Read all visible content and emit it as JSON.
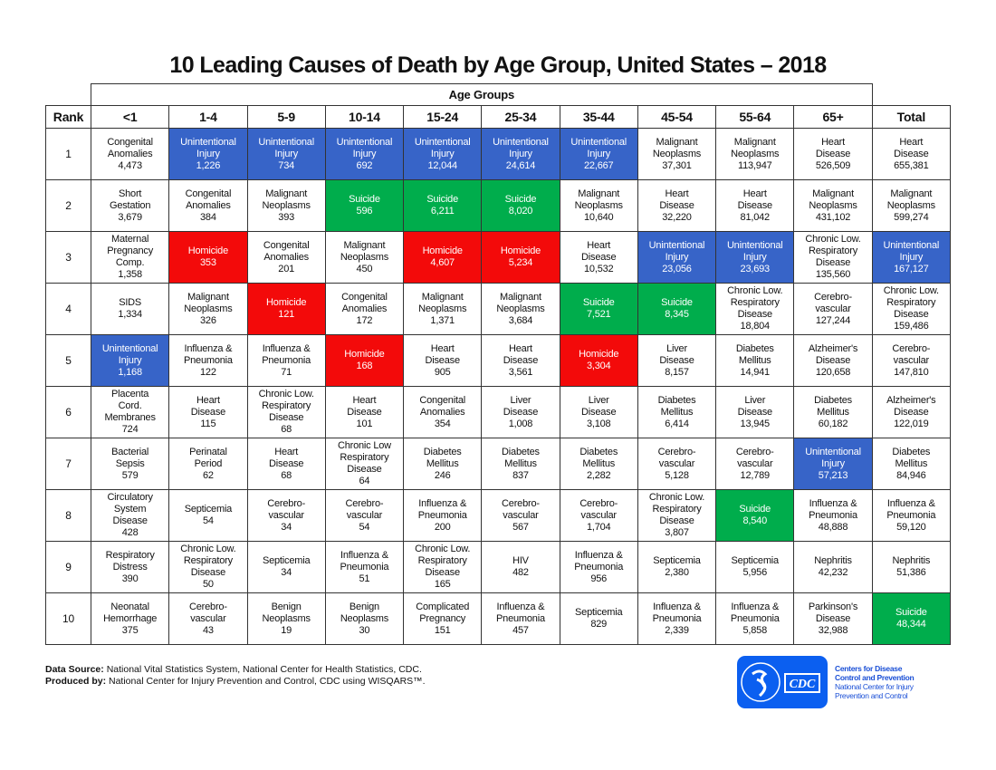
{
  "title": "10 Leading Causes of Death by Age Group, United States – 2018",
  "age_groups_label": "Age Groups",
  "columns": [
    "Rank",
    "<1",
    "1-4",
    "5-9",
    "10-14",
    "15-24",
    "25-34",
    "35-44",
    "45-54",
    "55-64",
    "65+",
    "Total"
  ],
  "colors": {
    "unintentional_injury": "#3764c8",
    "homicide": "#f30a0a",
    "suicide": "#00ad4c"
  },
  "rows": [
    {
      "rank": "1",
      "cells": [
        {
          "lines": [
            "Congenital",
            "Anomalies"
          ],
          "value": "4,473",
          "type": ""
        },
        {
          "lines": [
            "Unintentional",
            "Injury"
          ],
          "value": "1,226",
          "type": "blue"
        },
        {
          "lines": [
            "Unintentional",
            "Injury"
          ],
          "value": "734",
          "type": "blue"
        },
        {
          "lines": [
            "Unintentional",
            "Injury"
          ],
          "value": "692",
          "type": "blue"
        },
        {
          "lines": [
            "Unintentional",
            "Injury"
          ],
          "value": "12,044",
          "type": "blue"
        },
        {
          "lines": [
            "Unintentional",
            "Injury"
          ],
          "value": "24,614",
          "type": "blue"
        },
        {
          "lines": [
            "Unintentional",
            "Injury"
          ],
          "value": "22,667",
          "type": "blue"
        },
        {
          "lines": [
            "Malignant",
            "Neoplasms"
          ],
          "value": "37,301",
          "type": ""
        },
        {
          "lines": [
            "Malignant",
            "Neoplasms"
          ],
          "value": "113,947",
          "type": ""
        },
        {
          "lines": [
            "Heart",
            "Disease"
          ],
          "value": "526,509",
          "type": ""
        },
        {
          "lines": [
            "Heart",
            "Disease"
          ],
          "value": "655,381",
          "type": ""
        }
      ]
    },
    {
      "rank": "2",
      "cells": [
        {
          "lines": [
            "Short",
            "Gestation"
          ],
          "value": "3,679",
          "type": ""
        },
        {
          "lines": [
            "Congenital",
            "Anomalies"
          ],
          "value": "384",
          "type": ""
        },
        {
          "lines": [
            "Malignant",
            "Neoplasms"
          ],
          "value": "393",
          "type": ""
        },
        {
          "lines": [
            "Suicide"
          ],
          "value": "596",
          "type": "green"
        },
        {
          "lines": [
            "Suicide"
          ],
          "value": "6,211",
          "type": "green"
        },
        {
          "lines": [
            "Suicide"
          ],
          "value": "8,020",
          "type": "green"
        },
        {
          "lines": [
            "Malignant",
            "Neoplasms"
          ],
          "value": "10,640",
          "type": ""
        },
        {
          "lines": [
            "Heart",
            "Disease"
          ],
          "value": "32,220",
          "type": ""
        },
        {
          "lines": [
            "Heart",
            "Disease"
          ],
          "value": "81,042",
          "type": ""
        },
        {
          "lines": [
            "Malignant",
            "Neoplasms"
          ],
          "value": "431,102",
          "type": ""
        },
        {
          "lines": [
            "Malignant",
            "Neoplasms"
          ],
          "value": "599,274",
          "type": ""
        }
      ]
    },
    {
      "rank": "3",
      "cells": [
        {
          "lines": [
            "Maternal",
            "Pregnancy",
            "Comp."
          ],
          "value": "1,358",
          "type": ""
        },
        {
          "lines": [
            "Homicide"
          ],
          "value": "353",
          "type": "red"
        },
        {
          "lines": [
            "Congenital",
            "Anomalies"
          ],
          "value": "201",
          "type": ""
        },
        {
          "lines": [
            "Malignant",
            "Neoplasms"
          ],
          "value": "450",
          "type": ""
        },
        {
          "lines": [
            "Homicide"
          ],
          "value": "4,607",
          "type": "red"
        },
        {
          "lines": [
            "Homicide"
          ],
          "value": "5,234",
          "type": "red"
        },
        {
          "lines": [
            "Heart",
            "Disease"
          ],
          "value": "10,532",
          "type": ""
        },
        {
          "lines": [
            "Unintentional",
            "Injury"
          ],
          "value": "23,056",
          "type": "blue"
        },
        {
          "lines": [
            "Unintentional",
            "Injury"
          ],
          "value": "23,693",
          "type": "blue"
        },
        {
          "lines": [
            "Chronic Low.",
            "Respiratory",
            "Disease"
          ],
          "value": "135,560",
          "type": ""
        },
        {
          "lines": [
            "Unintentional",
            "Injury"
          ],
          "value": "167,127",
          "type": "blue"
        }
      ]
    },
    {
      "rank": "4",
      "cells": [
        {
          "lines": [
            "SIDS"
          ],
          "value": "1,334",
          "type": ""
        },
        {
          "lines": [
            "Malignant",
            "Neoplasms"
          ],
          "value": "326",
          "type": ""
        },
        {
          "lines": [
            "Homicide"
          ],
          "value": "121",
          "type": "red"
        },
        {
          "lines": [
            "Congenital",
            "Anomalies"
          ],
          "value": "172",
          "type": ""
        },
        {
          "lines": [
            "Malignant",
            "Neoplasms"
          ],
          "value": "1,371",
          "type": ""
        },
        {
          "lines": [
            "Malignant",
            "Neoplasms"
          ],
          "value": "3,684",
          "type": ""
        },
        {
          "lines": [
            "Suicide"
          ],
          "value": "7,521",
          "type": "green"
        },
        {
          "lines": [
            "Suicide"
          ],
          "value": "8,345",
          "type": "green"
        },
        {
          "lines": [
            "Chronic Low.",
            "Respiratory",
            "Disease"
          ],
          "value": "18,804",
          "type": ""
        },
        {
          "lines": [
            "Cerebro-",
            "vascular"
          ],
          "value": "127,244",
          "type": ""
        },
        {
          "lines": [
            "Chronic Low.",
            "Respiratory",
            "Disease"
          ],
          "value": "159,486",
          "type": ""
        }
      ]
    },
    {
      "rank": "5",
      "cells": [
        {
          "lines": [
            "Unintentional",
            "Injury"
          ],
          "value": "1,168",
          "type": "blue"
        },
        {
          "lines": [
            "Influenza &",
            "Pneumonia"
          ],
          "value": "122",
          "type": ""
        },
        {
          "lines": [
            "Influenza &",
            "Pneumonia"
          ],
          "value": "71",
          "type": ""
        },
        {
          "lines": [
            "Homicide"
          ],
          "value": "168",
          "type": "red"
        },
        {
          "lines": [
            "Heart",
            "Disease"
          ],
          "value": "905",
          "type": ""
        },
        {
          "lines": [
            "Heart",
            "Disease"
          ],
          "value": "3,561",
          "type": ""
        },
        {
          "lines": [
            "Homicide"
          ],
          "value": "3,304",
          "type": "red"
        },
        {
          "lines": [
            "Liver",
            "Disease"
          ],
          "value": "8,157",
          "type": ""
        },
        {
          "lines": [
            "Diabetes",
            "Mellitus"
          ],
          "value": "14,941",
          "type": ""
        },
        {
          "lines": [
            "Alzheimer's",
            "Disease"
          ],
          "value": "120,658",
          "type": ""
        },
        {
          "lines": [
            "Cerebro-",
            "vascular"
          ],
          "value": "147,810",
          "type": ""
        }
      ]
    },
    {
      "rank": "6",
      "cells": [
        {
          "lines": [
            "Placenta",
            "Cord.",
            "Membranes"
          ],
          "value": "724",
          "type": ""
        },
        {
          "lines": [
            "Heart",
            "Disease"
          ],
          "value": "115",
          "type": ""
        },
        {
          "lines": [
            "Chronic Low.",
            "Respiratory",
            "Disease"
          ],
          "value": "68",
          "type": ""
        },
        {
          "lines": [
            "Heart",
            "Disease"
          ],
          "value": "101",
          "type": ""
        },
        {
          "lines": [
            "Congenital",
            "Anomalies"
          ],
          "value": "354",
          "type": ""
        },
        {
          "lines": [
            "Liver",
            "Disease"
          ],
          "value": "1,008",
          "type": ""
        },
        {
          "lines": [
            "Liver",
            "Disease"
          ],
          "value": "3,108",
          "type": ""
        },
        {
          "lines": [
            "Diabetes",
            "Mellitus"
          ],
          "value": "6,414",
          "type": ""
        },
        {
          "lines": [
            "Liver",
            "Disease"
          ],
          "value": "13,945",
          "type": ""
        },
        {
          "lines": [
            "Diabetes",
            "Mellitus"
          ],
          "value": "60,182",
          "type": ""
        },
        {
          "lines": [
            "Alzheimer's",
            "Disease"
          ],
          "value": "122,019",
          "type": ""
        }
      ]
    },
    {
      "rank": "7",
      "cells": [
        {
          "lines": [
            "Bacterial",
            "Sepsis"
          ],
          "value": "579",
          "type": ""
        },
        {
          "lines": [
            "Perinatal",
            "Period"
          ],
          "value": "62",
          "type": ""
        },
        {
          "lines": [
            "Heart",
            "Disease"
          ],
          "value": "68",
          "type": ""
        },
        {
          "lines": [
            "Chronic Low",
            "Respiratory",
            "Disease"
          ],
          "value": "64",
          "type": ""
        },
        {
          "lines": [
            "Diabetes",
            "Mellitus"
          ],
          "value": "246",
          "type": ""
        },
        {
          "lines": [
            "Diabetes",
            "Mellitus"
          ],
          "value": "837",
          "type": ""
        },
        {
          "lines": [
            "Diabetes",
            "Mellitus"
          ],
          "value": "2,282",
          "type": ""
        },
        {
          "lines": [
            "Cerebro-",
            "vascular"
          ],
          "value": "5,128",
          "type": ""
        },
        {
          "lines": [
            "Cerebro-",
            "vascular"
          ],
          "value": "12,789",
          "type": ""
        },
        {
          "lines": [
            "Unintentional",
            "Injury"
          ],
          "value": "57,213",
          "type": "blue"
        },
        {
          "lines": [
            "Diabetes",
            "Mellitus"
          ],
          "value": "84,946",
          "type": ""
        }
      ]
    },
    {
      "rank": "8",
      "cells": [
        {
          "lines": [
            "Circulatory",
            "System",
            "Disease"
          ],
          "value": "428",
          "type": ""
        },
        {
          "lines": [
            "Septicemia"
          ],
          "value": "54",
          "type": ""
        },
        {
          "lines": [
            "Cerebro-",
            "vascular"
          ],
          "value": "34",
          "type": ""
        },
        {
          "lines": [
            "Cerebro-",
            "vascular"
          ],
          "value": "54",
          "type": ""
        },
        {
          "lines": [
            "Influenza &",
            "Pneumonia"
          ],
          "value": "200",
          "type": ""
        },
        {
          "lines": [
            "Cerebro-",
            "vascular"
          ],
          "value": "567",
          "type": ""
        },
        {
          "lines": [
            "Cerebro-",
            "vascular"
          ],
          "value": "1,704",
          "type": ""
        },
        {
          "lines": [
            "Chronic Low.",
            "Respiratory",
            "Disease"
          ],
          "value": "3,807",
          "type": ""
        },
        {
          "lines": [
            "Suicide"
          ],
          "value": "8,540",
          "type": "green"
        },
        {
          "lines": [
            "Influenza &",
            "Pneumonia"
          ],
          "value": "48,888",
          "type": ""
        },
        {
          "lines": [
            "Influenza &",
            "Pneumonia"
          ],
          "value": "59,120",
          "type": ""
        }
      ]
    },
    {
      "rank": "9",
      "cells": [
        {
          "lines": [
            "Respiratory",
            "Distress"
          ],
          "value": "390",
          "type": ""
        },
        {
          "lines": [
            "Chronic Low.",
            "Respiratory",
            "Disease"
          ],
          "value": "50",
          "type": ""
        },
        {
          "lines": [
            "Septicemia"
          ],
          "value": "34",
          "type": ""
        },
        {
          "lines": [
            "Influenza &",
            "Pneumonia"
          ],
          "value": "51",
          "type": ""
        },
        {
          "lines": [
            "Chronic Low.",
            "Respiratory",
            "Disease"
          ],
          "value": "165",
          "type": ""
        },
        {
          "lines": [
            "HIV"
          ],
          "value": "482",
          "type": ""
        },
        {
          "lines": [
            "Influenza &",
            "Pneumonia"
          ],
          "value": "956",
          "type": ""
        },
        {
          "lines": [
            "Septicemia"
          ],
          "value": "2,380",
          "type": ""
        },
        {
          "lines": [
            "Septicemia"
          ],
          "value": "5,956",
          "type": ""
        },
        {
          "lines": [
            "Nephritis"
          ],
          "value": "42,232",
          "type": ""
        },
        {
          "lines": [
            "Nephritis"
          ],
          "value": "51,386",
          "type": ""
        }
      ]
    },
    {
      "rank": "10",
      "cells": [
        {
          "lines": [
            "Neonatal",
            "Hemorrhage"
          ],
          "value": "375",
          "type": ""
        },
        {
          "lines": [
            "Cerebro-",
            "vascular"
          ],
          "value": "43",
          "type": ""
        },
        {
          "lines": [
            "Benign",
            "Neoplasms"
          ],
          "value": "19",
          "type": ""
        },
        {
          "lines": [
            "Benign",
            "Neoplasms"
          ],
          "value": "30",
          "type": ""
        },
        {
          "lines": [
            "Complicated",
            "Pregnancy"
          ],
          "value": "151",
          "type": ""
        },
        {
          "lines": [
            "Influenza &",
            "Pneumonia"
          ],
          "value": "457",
          "type": ""
        },
        {
          "lines": [
            "Septicemia"
          ],
          "value": "829",
          "type": ""
        },
        {
          "lines": [
            "Influenza &",
            "Pneumonia"
          ],
          "value": "2,339",
          "type": ""
        },
        {
          "lines": [
            "Influenza &",
            "Pneumonia"
          ],
          "value": "5,858",
          "type": ""
        },
        {
          "lines": [
            "Parkinson's",
            "Disease"
          ],
          "value": "32,988",
          "type": ""
        },
        {
          "lines": [
            "Suicide"
          ],
          "value": "48,344",
          "type": "green"
        }
      ]
    }
  ],
  "footer": {
    "source_label": "Data Source:",
    "source_text": " National Vital Statistics System, National Center for Health Statistics, CDC.",
    "produced_label": "Produced by:",
    "produced_text": " National Center for Injury Prevention and Control, CDC using WISQARS™."
  },
  "logo": {
    "line1": "Centers for Disease",
    "line2": "Control and Prevention",
    "line3": "National Center for Injury",
    "line4": "Prevention and Control",
    "mark": "CDC"
  }
}
